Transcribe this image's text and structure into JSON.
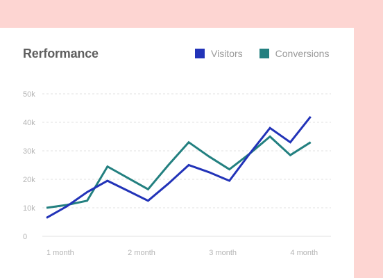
{
  "chart_data": {
    "type": "line",
    "title": "Rerformance",
    "xlabel": "",
    "ylabel": "",
    "x_tick_labels": [
      "1 month",
      "2 month",
      "3 month",
      "4 month"
    ],
    "y_tick_labels": [
      "0",
      "10k",
      "20k",
      "30k",
      "40k",
      "50k"
    ],
    "ylim": [
      0,
      50000
    ],
    "xlim": [
      1,
      4.5
    ],
    "grid": true,
    "legend_position": "top-right",
    "x": [
      1,
      1.25,
      1.5,
      1.75,
      2,
      2.25,
      2.5,
      2.75,
      3,
      3.25,
      3.5,
      3.75,
      4,
      4.25
    ],
    "series": [
      {
        "name": "Visitors",
        "color": "#2233b8",
        "values": [
          6500,
          10500,
          15500,
          19500,
          16000,
          12500,
          18500,
          25000,
          22500,
          19500,
          29000,
          38000,
          33000,
          42000
        ]
      },
      {
        "name": "Conversions",
        "color": "#238080",
        "values": [
          10000,
          11000,
          12500,
          24500,
          20500,
          16500,
          25000,
          33000,
          28000,
          23500,
          29000,
          35000,
          28500,
          33000
        ]
      }
    ]
  }
}
